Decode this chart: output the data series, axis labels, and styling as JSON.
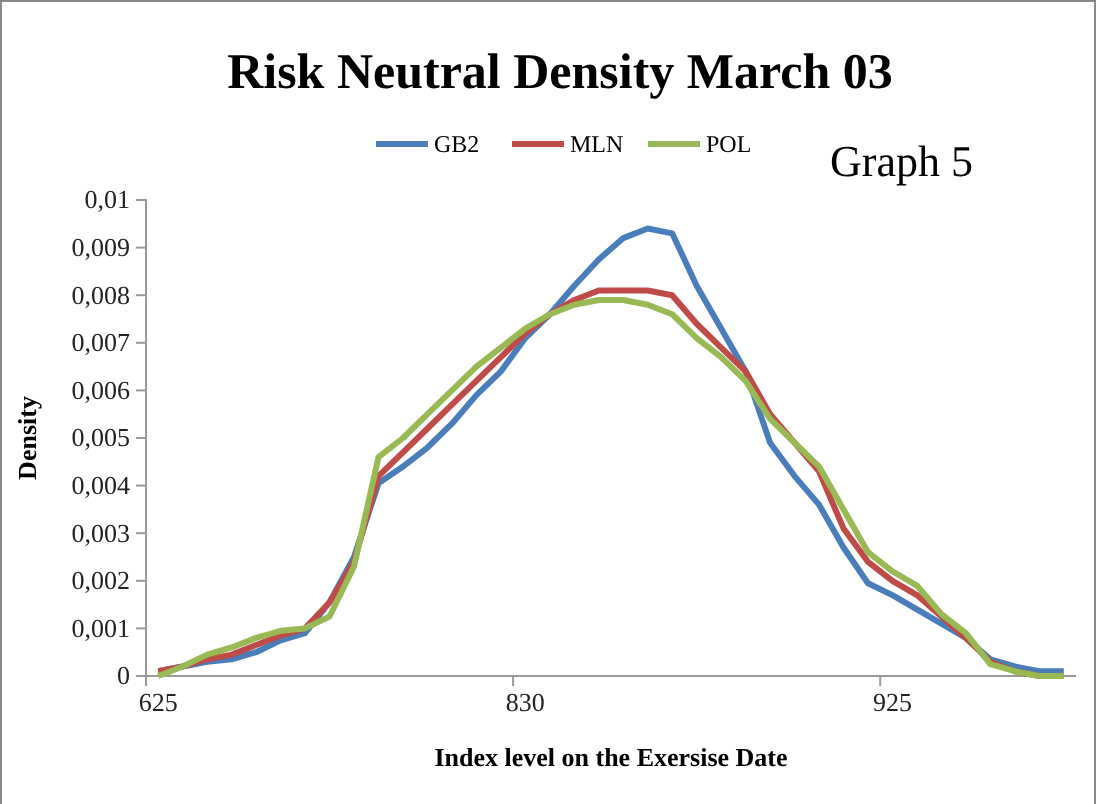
{
  "chart_data": {
    "type": "line",
    "title": "Risk Neutral Density March 03",
    "xlabel": "Index level on the Exersise Date",
    "ylabel": "Density",
    "annotations": [
      "Graph 5"
    ],
    "legend": "top",
    "grid": false,
    "categories": [
      "625",
      null,
      null,
      null,
      null,
      null,
      null,
      null,
      null,
      null,
      null,
      null,
      null,
      null,
      null,
      "830",
      null,
      null,
      null,
      null,
      null,
      null,
      null,
      null,
      null,
      null,
      null,
      null,
      null,
      null,
      "925",
      null,
      null,
      null,
      null,
      null,
      null,
      null
    ],
    "ylim": [
      0,
      0.01
    ],
    "yticks": [
      {
        "value": 0,
        "label": "0"
      },
      {
        "value": 0.001,
        "label": "0,001"
      },
      {
        "value": 0.002,
        "label": "0,002"
      },
      {
        "value": 0.003,
        "label": "0,003"
      },
      {
        "value": 0.004,
        "label": "0,004"
      },
      {
        "value": 0.005,
        "label": "0,005"
      },
      {
        "value": 0.006,
        "label": "0,006"
      },
      {
        "value": 0.007,
        "label": "0,007"
      },
      {
        "value": 0.008,
        "label": "0,008"
      },
      {
        "value": 0.009,
        "label": "0,009"
      },
      {
        "value": 0.01,
        "label": "0,01"
      }
    ],
    "series": [
      {
        "name": "GB2",
        "color": "#4a7ebb",
        "values": [
          0.0001,
          0.0002,
          0.0003,
          0.00035,
          0.0005,
          0.00075,
          0.0009,
          0.00155,
          0.0025,
          0.00405,
          0.0044,
          0.0048,
          0.0053,
          0.0059,
          0.0064,
          0.0071,
          0.0076,
          0.0082,
          0.00875,
          0.0092,
          0.0094,
          0.0093,
          0.0082,
          0.0073,
          0.0064,
          0.0049,
          0.0042,
          0.0036,
          0.0027,
          0.00195,
          0.0017,
          0.0014,
          0.0011,
          0.0008,
          0.00035,
          0.0002,
          0.0001,
          0.0001
        ]
      },
      {
        "name": "MLN",
        "color": "#be4b48",
        "values": [
          0.0001,
          0.0002,
          0.00035,
          0.00045,
          0.00065,
          0.00085,
          0.001,
          0.00155,
          0.0024,
          0.0042,
          0.0047,
          0.0052,
          0.0057,
          0.0062,
          0.0067,
          0.0072,
          0.0076,
          0.0079,
          0.0081,
          0.0081,
          0.0081,
          0.008,
          0.0074,
          0.0069,
          0.0064,
          0.0055,
          0.0049,
          0.0043,
          0.0031,
          0.0024,
          0.002,
          0.0017,
          0.00125,
          0.0008,
          0.0003,
          0.0001,
          0,
          0
        ]
      },
      {
        "name": "POL",
        "color": "#98b954",
        "values": [
          0,
          0.0002,
          0.00045,
          0.0006,
          0.0008,
          0.00095,
          0.001,
          0.00125,
          0.0023,
          0.0046,
          0.005,
          0.0055,
          0.006,
          0.0065,
          0.0069,
          0.0073,
          0.0076,
          0.0078,
          0.0079,
          0.0079,
          0.0078,
          0.0076,
          0.0071,
          0.0067,
          0.0062,
          0.0054,
          0.0049,
          0.0044,
          0.0035,
          0.0026,
          0.0022,
          0.0019,
          0.0013,
          0.0009,
          0.00025,
          0.0001,
          0,
          0
        ]
      }
    ]
  }
}
